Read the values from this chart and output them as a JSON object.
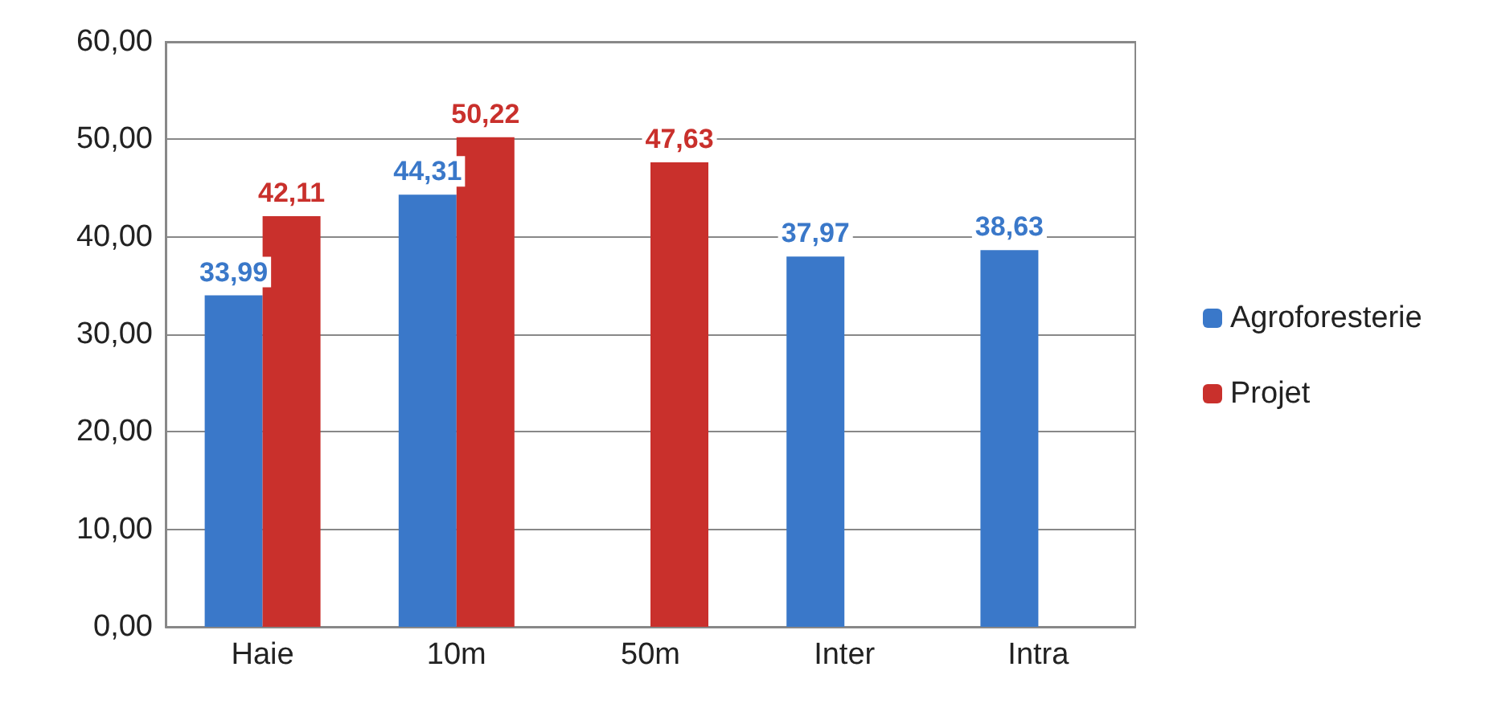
{
  "chart_data": {
    "type": "bar",
    "categories": [
      "Haie",
      "10m",
      "50m",
      "Inter",
      "Intra"
    ],
    "series": [
      {
        "name": "Agroforesterie",
        "color": "#3a78c9",
        "values": [
          33.99,
          44.31,
          null,
          37.97,
          38.63
        ],
        "value_labels": [
          "33,99",
          "44,31",
          null,
          "37,97",
          "38,63"
        ]
      },
      {
        "name": "Projet",
        "color": "#c9302c",
        "values": [
          42.11,
          50.22,
          47.63,
          null,
          null
        ],
        "value_labels": [
          "42,11",
          "50,22",
          "47,63",
          null,
          null
        ]
      }
    ],
    "ylim": [
      0,
      60
    ],
    "yticks": [
      {
        "value": 0,
        "label": "0,00"
      },
      {
        "value": 10,
        "label": "10,00"
      },
      {
        "value": 20,
        "label": "20,00"
      },
      {
        "value": 30,
        "label": "30,00"
      },
      {
        "value": 40,
        "label": "40,00"
      },
      {
        "value": 50,
        "label": "50,00"
      },
      {
        "value": 60,
        "label": "60,00"
      }
    ],
    "grid": "y",
    "legend": "right"
  }
}
